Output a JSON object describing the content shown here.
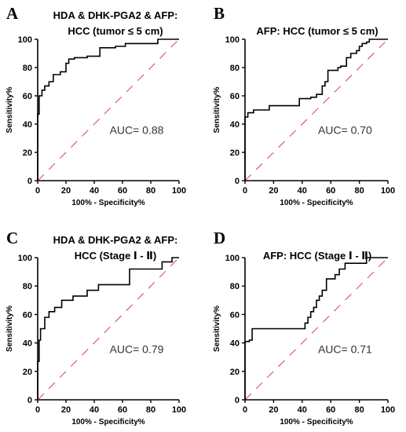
{
  "chart_data": [
    {
      "panel": "A",
      "type": "line",
      "title_lines": [
        "HDA & DHK-PGA2 & AFP:",
        "HCC (tumor ≤ 5 cm)"
      ],
      "xlabel": "100% - Specificity%",
      "ylabel": "Sensitivity%",
      "xlim": [
        0,
        100
      ],
      "ylim": [
        0,
        100
      ],
      "xticks": [
        "0",
        "20",
        "40",
        "60",
        "80",
        "100"
      ],
      "yticks": [
        "0",
        "20",
        "40",
        "60",
        "80",
        "100"
      ],
      "annotation": "AUC= 0.88",
      "series": [
        {
          "role": "roc",
          "color": "#000000",
          "x": [
            0,
            0,
            1,
            1,
            3,
            3,
            5,
            5,
            8,
            8,
            11,
            11,
            14,
            14,
            16,
            16,
            20,
            20,
            22,
            22,
            26,
            26,
            35,
            35,
            44,
            44,
            55,
            55,
            62,
            62,
            85,
            85,
            100
          ],
          "y": [
            0,
            47,
            47,
            60,
            60,
            64,
            64,
            67,
            67,
            70,
            70,
            75,
            75,
            75,
            75,
            77,
            77,
            83,
            83,
            86,
            86,
            87,
            87,
            88,
            88,
            94,
            94,
            95,
            95,
            97,
            97,
            100,
            100
          ]
        },
        {
          "role": "reference",
          "color": "#e05050",
          "dashed": true,
          "x": [
            0,
            100
          ],
          "y": [
            0,
            100
          ]
        }
      ]
    },
    {
      "panel": "B",
      "type": "line",
      "title_lines": [
        "AFP: HCC (tumor ≤ 5 cm)"
      ],
      "xlabel": "100% - Specificity%",
      "ylabel": "Sensitivity%",
      "xlim": [
        0,
        100
      ],
      "ylim": [
        0,
        100
      ],
      "xticks": [
        "0",
        "20",
        "40",
        "60",
        "80",
        "100"
      ],
      "yticks": [
        "0",
        "20",
        "40",
        "60",
        "80",
        "100"
      ],
      "annotation": "AUC= 0.70",
      "series": [
        {
          "role": "roc",
          "color": "#000000",
          "x": [
            0,
            0,
            2,
            2,
            6,
            6,
            17,
            17,
            38,
            38,
            46,
            46,
            50,
            50,
            54,
            54,
            56,
            56,
            58,
            58,
            65,
            65,
            67,
            67,
            71,
            71,
            74,
            74,
            78,
            78,
            80,
            80,
            82,
            82,
            85,
            85,
            87,
            87,
            100
          ],
          "y": [
            0,
            45,
            45,
            48,
            48,
            50,
            50,
            53,
            53,
            58,
            58,
            59,
            59,
            61,
            61,
            67,
            67,
            70,
            70,
            78,
            78,
            80,
            80,
            81,
            81,
            87,
            87,
            90,
            90,
            92,
            92,
            95,
            95,
            97,
            97,
            98,
            98,
            100,
            100
          ]
        },
        {
          "role": "reference",
          "color": "#e05050",
          "dashed": true,
          "x": [
            0,
            100
          ],
          "y": [
            0,
            100
          ]
        }
      ]
    },
    {
      "panel": "C",
      "type": "line",
      "title_lines": [
        "HDA & DHK-PGA2 & AFP:",
        "HCC (Stage Ⅰ - Ⅱ)"
      ],
      "xlabel": "100% - Specificity%",
      "ylabel": "Sensitivity%",
      "xlim": [
        0,
        100
      ],
      "ylim": [
        0,
        100
      ],
      "xticks": [
        "0",
        "20",
        "40",
        "60",
        "80",
        "100"
      ],
      "yticks": [
        "0",
        "20",
        "40",
        "60",
        "80",
        "100"
      ],
      "annotation": "AUC= 0.79",
      "series": [
        {
          "role": "roc",
          "color": "#000000",
          "x": [
            0,
            0,
            1,
            1,
            2,
            2,
            5,
            5,
            8,
            8,
            12,
            12,
            17,
            17,
            25,
            25,
            35,
            35,
            43,
            43,
            65,
            65,
            88,
            88,
            95,
            95,
            100
          ],
          "y": [
            0,
            27,
            27,
            42,
            42,
            50,
            50,
            58,
            58,
            62,
            62,
            65,
            65,
            70,
            70,
            73,
            73,
            77,
            77,
            81,
            81,
            92,
            92,
            97,
            97,
            100,
            100
          ]
        },
        {
          "role": "reference",
          "color": "#e05050",
          "dashed": true,
          "x": [
            0,
            100
          ],
          "y": [
            0,
            100
          ]
        }
      ]
    },
    {
      "panel": "D",
      "type": "line",
      "title_lines": [
        "AFP: HCC (Stage Ⅰ - Ⅱ)"
      ],
      "xlabel": "100% - Specificity%",
      "ylabel": "Sensitivity%",
      "xlim": [
        0,
        100
      ],
      "ylim": [
        0,
        100
      ],
      "xticks": [
        "0",
        "20",
        "40",
        "60",
        "80",
        "100"
      ],
      "yticks": [
        "0",
        "20",
        "40",
        "60",
        "80",
        "100"
      ],
      "annotation": "AUC= 0.71",
      "series": [
        {
          "role": "roc",
          "color": "#000000",
          "x": [
            0,
            0,
            3,
            3,
            5,
            5,
            42,
            42,
            44,
            44,
            46,
            46,
            48,
            48,
            50,
            50,
            52,
            52,
            54,
            54,
            57,
            57,
            63,
            63,
            66,
            66,
            70,
            70,
            85,
            85,
            100
          ],
          "y": [
            0,
            41,
            41,
            42,
            42,
            50,
            50,
            54,
            54,
            58,
            58,
            62,
            62,
            65,
            65,
            70,
            70,
            73,
            73,
            77,
            77,
            85,
            85,
            88,
            88,
            92,
            92,
            96,
            96,
            100,
            100
          ]
        },
        {
          "role": "reference",
          "color": "#e05050",
          "dashed": true,
          "x": [
            0,
            100
          ],
          "y": [
            0,
            100
          ]
        }
      ]
    }
  ]
}
